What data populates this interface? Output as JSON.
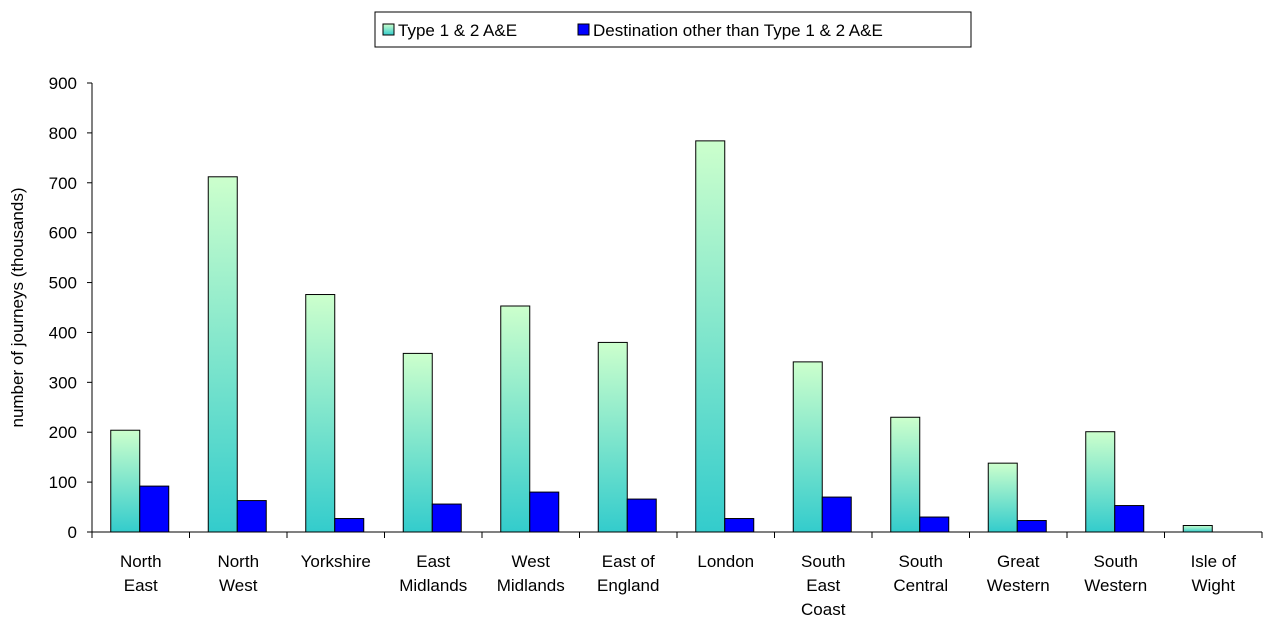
{
  "chart_data": {
    "type": "bar",
    "title": "",
    "xlabel": "",
    "ylabel": "number of journeys (thousands)",
    "ylim": [
      0,
      900
    ],
    "yticks": [
      0,
      100,
      200,
      300,
      400,
      500,
      600,
      700,
      800,
      900
    ],
    "grid": false,
    "legend_position": "top-center",
    "categories": [
      [
        "North",
        "East"
      ],
      [
        "North",
        "West"
      ],
      [
        "Yorkshire"
      ],
      [
        "East",
        "Midlands"
      ],
      [
        "West",
        "Midlands"
      ],
      [
        "East of",
        "England"
      ],
      [
        "London"
      ],
      [
        "South",
        "East",
        "Coast"
      ],
      [
        "South",
        "Central"
      ],
      [
        "Great",
        "Western"
      ],
      [
        "South",
        "Western"
      ],
      [
        "Isle of",
        "Wight"
      ]
    ],
    "series": [
      {
        "name": "Type 1 & 2 A&E",
        "color_top": "#ccffcc",
        "color_bottom": "#33cccc",
        "values": [
          204,
          712,
          476,
          358,
          453,
          380,
          784,
          341,
          230,
          138,
          201,
          13
        ]
      },
      {
        "name": "Destination other than Type 1 & 2 A&E",
        "color": "#0000ff",
        "values": [
          92,
          63,
          27,
          56,
          80,
          66,
          27,
          70,
          30,
          23,
          53,
          0
        ]
      }
    ]
  }
}
